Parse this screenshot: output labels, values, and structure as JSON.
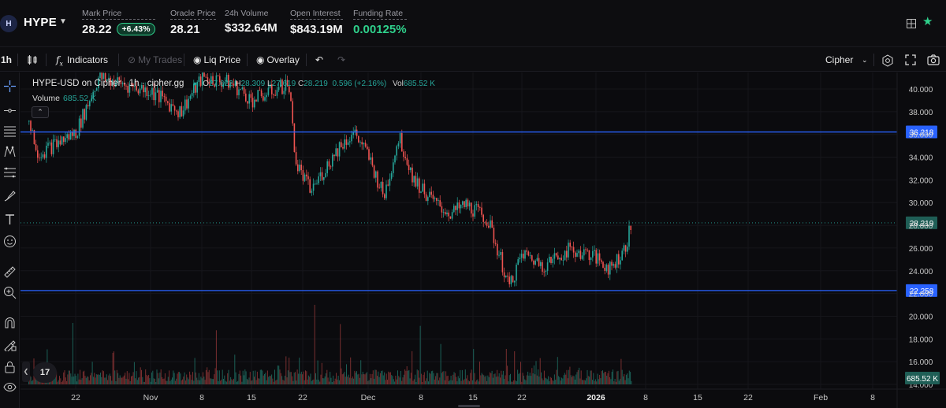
{
  "header": {
    "symbol_badge": "H",
    "symbol": "HYPE",
    "stats": {
      "mark_price_label": "Mark Price",
      "mark_price": "28.22",
      "mark_change": "+6.43%",
      "oracle_price_label": "Oracle Price",
      "oracle_price": "28.21",
      "volume_label": "24h Volume",
      "volume": "$332.64M",
      "oi_label": "Open Interest",
      "oi": "$843.19M",
      "funding_label": "Funding Rate",
      "funding": "0.00125%"
    }
  },
  "toolbar": {
    "interval": "1h",
    "indicators": "Indicators",
    "my_trades": "My Trades",
    "liq_price": "Liq Price",
    "overlay": "Overlay",
    "source": "Cipher"
  },
  "legend": {
    "title": "HYPE-USD on Cipher · 1h · cipher.gg",
    "o_key": "O",
    "o": "27.622",
    "h_key": "H",
    "h": "28.309",
    "l_key": "L",
    "l": "27.619",
    "c_key": "C",
    "c": "28.219",
    "change": "0.596 (+2.16%)",
    "vol_key": "Vol",
    "vol": "685.52 K",
    "volume_label": "Volume",
    "volume_value": "685.52 K"
  },
  "tv_logo": "17",
  "chart_data": {
    "type": "candlestick",
    "price_axis_ticks": [
      "40.000",
      "38.000",
      "36.000",
      "34.000",
      "32.000",
      "30.000",
      "28.000",
      "26.000",
      "24.000",
      "22.000",
      "20.000",
      "18.000",
      "16.000",
      "14.000"
    ],
    "x_axis_ticks": [
      "22",
      "Nov",
      "8",
      "15",
      "22",
      "Dec",
      "8",
      "15",
      "22",
      "2026",
      "8",
      "15",
      "22",
      "Feb",
      "8"
    ],
    "ylim": [
      14.0,
      40.0
    ],
    "horizontal_lines": [
      {
        "label": "36.218",
        "value": 36.218,
        "color": "#2962ff"
      },
      {
        "label": "22.258",
        "value": 22.258,
        "color": "#2962ff"
      }
    ],
    "last_price": {
      "label": "28.219",
      "value": 28.219,
      "color": "#26a69a"
    },
    "last_volume_label": "685.52 K",
    "colors": {
      "up": "#26a69a",
      "down": "#ef5350"
    },
    "price_path": [
      {
        "date": "Oct 15",
        "close": 38.6
      },
      {
        "date": "Oct 17",
        "close": 34.3
      },
      {
        "date": "Oct 22",
        "close": 36.2
      },
      {
        "date": "Oct 25",
        "close": 41.0
      },
      {
        "date": "Nov 1",
        "close": 39.8
      },
      {
        "date": "Nov 5",
        "close": 38.0
      },
      {
        "date": "Nov 8",
        "close": 41.0
      },
      {
        "date": "Nov 12",
        "close": 40.5
      },
      {
        "date": "Nov 15",
        "close": 39.0
      },
      {
        "date": "Nov 20",
        "close": 40.5
      },
      {
        "date": "Nov 21",
        "close": 33.5
      },
      {
        "date": "Nov 23",
        "close": 31.0
      },
      {
        "date": "Nov 27",
        "close": 35.0
      },
      {
        "date": "Nov 29",
        "close": 36.2
      },
      {
        "date": "Dec 1",
        "close": 34.0
      },
      {
        "date": "Dec 3",
        "close": 30.5
      },
      {
        "date": "Dec 5",
        "close": 35.8
      },
      {
        "date": "Dec 7",
        "close": 32.0
      },
      {
        "date": "Dec 10",
        "close": 29.8
      },
      {
        "date": "Dec 12",
        "close": 29.0
      },
      {
        "date": "Dec 14",
        "close": 29.8
      },
      {
        "date": "Dec 17",
        "close": 28.5
      },
      {
        "date": "Dec 19",
        "close": 24.8
      },
      {
        "date": "Dec 20",
        "close": 22.5
      },
      {
        "date": "Dec 22",
        "close": 25.5
      },
      {
        "date": "Dec 25",
        "close": 24.5
      },
      {
        "date": "Dec 28",
        "close": 25.8
      },
      {
        "date": "Dec 31",
        "close": 25.5
      },
      {
        "date": "Jan 3",
        "close": 24.2
      },
      {
        "date": "Jan 5",
        "close": 26.0
      },
      {
        "date": "Jan 6",
        "close": 28.22
      }
    ]
  }
}
